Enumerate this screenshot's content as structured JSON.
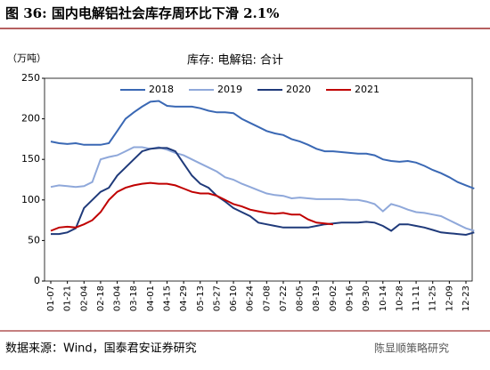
{
  "chart_data": {
    "type": "line",
    "title": "图 36:  国内电解铝社会库存周环比下滑 2.1%",
    "subtitle": "库存: 电解铝: 合计",
    "y_label": "（万吨）",
    "source": "数据来源：Wind，国泰君安证券研究",
    "watermark": "陈显顺策略研究",
    "categories": [
      "01-07",
      null,
      "01-21",
      null,
      "02-04",
      null,
      "02-18",
      null,
      "03-04",
      null,
      "03-18",
      null,
      "04-01",
      null,
      "04-15",
      null,
      "04-29",
      null,
      "05-13",
      null,
      "05-27",
      null,
      "06-10",
      null,
      "06-24",
      null,
      "07-08",
      null,
      "07-22",
      null,
      "08-05",
      null,
      "08-19",
      null,
      "09-02",
      null,
      "09-16",
      null,
      "09-30",
      null,
      "10-14",
      null,
      "10-28",
      null,
      "11-11",
      null,
      "11-25",
      null,
      "12-09",
      null,
      "12-23",
      null
    ],
    "series": [
      {
        "name": "2018",
        "color": "#3a68b4",
        "values": [
          172,
          170,
          169,
          170,
          168,
          168,
          168,
          170,
          185,
          200,
          208,
          215,
          221,
          222,
          216,
          215,
          215,
          215,
          213,
          210,
          208,
          208,
          207,
          200,
          195,
          190,
          185,
          182,
          180,
          175,
          172,
          168,
          163,
          160,
          160,
          159,
          158,
          157,
          157,
          155,
          150,
          148,
          147,
          148,
          146,
          142,
          137,
          133,
          128,
          122,
          118,
          114
        ]
      },
      {
        "name": "2019",
        "color": "#8fa8da",
        "values": [
          116,
          118,
          117,
          116,
          117,
          122,
          150,
          153,
          155,
          160,
          165,
          165,
          163,
          165,
          162,
          158,
          155,
          150,
          145,
          140,
          135,
          128,
          125,
          120,
          116,
          112,
          108,
          106,
          105,
          102,
          103,
          102,
          101,
          101,
          101,
          101,
          100,
          100,
          98,
          95,
          86,
          95,
          92,
          88,
          85,
          84,
          82,
          80,
          75,
          70,
          65,
          62
        ]
      },
      {
        "name": "2020",
        "color": "#1f3a7a",
        "values": [
          58,
          58,
          60,
          65,
          90,
          100,
          110,
          115,
          130,
          140,
          150,
          160,
          163,
          164,
          164,
          160,
          145,
          130,
          120,
          115,
          105,
          98,
          90,
          85,
          80,
          72,
          70,
          68,
          66,
          66,
          66,
          66,
          68,
          70,
          71,
          72,
          72,
          72,
          73,
          72,
          68,
          62,
          70,
          70,
          68,
          66,
          63,
          60,
          59,
          58,
          57,
          60
        ]
      },
      {
        "name": "2021",
        "color": "#c00000",
        "values": [
          62,
          66,
          67,
          66,
          70,
          75,
          85,
          100,
          110,
          115,
          118,
          120,
          121,
          120,
          120,
          118,
          114,
          110,
          108,
          108,
          105,
          100,
          95,
          92,
          88,
          86,
          84,
          83,
          84,
          82,
          82,
          76,
          72,
          71,
          70,
          null,
          null,
          null,
          null,
          null,
          null,
          null,
          null,
          null,
          null,
          null,
          null,
          null,
          null,
          null,
          null,
          null
        ]
      }
    ],
    "ylim": [
      0,
      250
    ],
    "yticks": [
      0,
      50,
      100,
      150,
      200,
      250
    ]
  }
}
